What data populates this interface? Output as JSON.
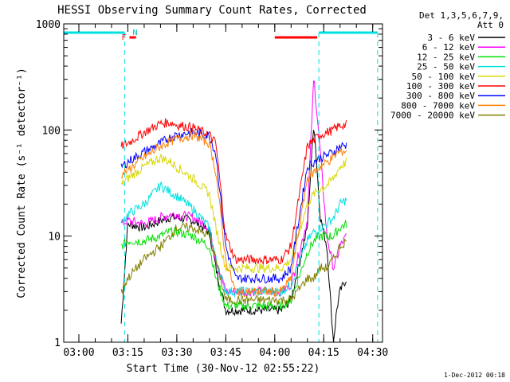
{
  "chart_data": {
    "type": "line",
    "title": "HESSI Observing Summary Count Rates, Corrected",
    "xlabel": "Start Time (30-Nov-12 02:55:22)",
    "ylabel": "Corrected Count Rate (s⁻¹ detector⁻¹)",
    "timestamp": "1-Dec-2012 00:18",
    "yscale": "log",
    "ylim": [
      1,
      1000
    ],
    "xlim": [
      "02:55:22",
      "04:33:00"
    ],
    "x_ticks": [
      "03:00",
      "03:15",
      "03:30",
      "03:45",
      "04:00",
      "04:15",
      "04:30"
    ],
    "y_ticks": [
      "1",
      "10",
      "100",
      "1000"
    ],
    "legend": {
      "header": [
        "Det 1,3,5,6,7,9,",
        "Att 0"
      ],
      "placement": "right"
    },
    "annotations": {
      "flare_marker": "F",
      "night_marker": "N",
      "day_intervals": [
        [
          "02:55:22",
          "03:14:00"
        ],
        [
          "04:13:30",
          "04:31:30"
        ]
      ],
      "flare_intervals": [
        [
          "03:15:30",
          "03:17:30"
        ],
        [
          "04:00:00",
          "04:13:00"
        ]
      ],
      "saa_dash_times": [
        "03:14:00",
        "04:13:30",
        "04:31:30"
      ]
    },
    "x_minutes": [
      13,
      15,
      20,
      25,
      28,
      30,
      35,
      40,
      42,
      45,
      48,
      50,
      52,
      55,
      58,
      60,
      62,
      65,
      70,
      72,
      74,
      76,
      78,
      79,
      80,
      82
    ],
    "series": [
      {
        "name": "3 - 6 keV",
        "color": "#000000",
        "values": [
          1.5,
          13,
          12,
          14,
          15,
          15,
          14,
          11,
          5,
          2,
          2,
          2,
          2,
          2,
          2,
          2,
          2,
          2.5,
          12,
          120,
          15,
          8,
          1,
          2,
          3,
          4
        ]
      },
      {
        "name": "6 - 12 keV",
        "color": "#ff00ff",
        "values": [
          13,
          14,
          13,
          15,
          16,
          16,
          15,
          12,
          6,
          3,
          3,
          3,
          3,
          3,
          3,
          3,
          3,
          3.5,
          14,
          320,
          60,
          10,
          5,
          6,
          8,
          10
        ]
      },
      {
        "name": "12 - 25 keV",
        "color": "#00e000",
        "values": [
          8,
          9,
          9,
          10,
          11,
          11,
          10,
          8,
          4,
          2.2,
          2.2,
          2.2,
          2.2,
          2.2,
          2.2,
          2.2,
          2.2,
          2.5,
          7,
          9,
          10,
          10,
          10,
          11,
          12,
          13
        ]
      },
      {
        "name": "25 - 50 keV",
        "color": "#00e0e0",
        "values": [
          13,
          16,
          20,
          30,
          26,
          24,
          18,
          12,
          6,
          3,
          3,
          3,
          3,
          3,
          3,
          3,
          3,
          3.5,
          9,
          11,
          12,
          13,
          15,
          17,
          20,
          22
        ]
      },
      {
        "name": "50 - 100 keV",
        "color": "#d8d800",
        "values": [
          30,
          35,
          45,
          55,
          50,
          45,
          35,
          25,
          12,
          5,
          5,
          5,
          5,
          5,
          5,
          5,
          5,
          6,
          20,
          25,
          28,
          30,
          35,
          40,
          45,
          50
        ]
      },
      {
        "name": "100 - 300 keV",
        "color": "#ff0000",
        "values": [
          70,
          75,
          95,
          115,
          118,
          112,
          105,
          90,
          75,
          10,
          6,
          6,
          6,
          6,
          6,
          6,
          6,
          8,
          70,
          80,
          90,
          95,
          100,
          105,
          110,
          112
        ]
      },
      {
        "name": "300 - 800 keV",
        "color": "#0000ff",
        "values": [
          45,
          50,
          62,
          75,
          85,
          90,
          95,
          88,
          60,
          8,
          4,
          4,
          4,
          4,
          4,
          4,
          4,
          5,
          45,
          50,
          55,
          58,
          62,
          66,
          70,
          72
        ]
      },
      {
        "name": "800 - 7000 keV",
        "color": "#ff8000",
        "values": [
          38,
          42,
          55,
          70,
          78,
          82,
          90,
          75,
          40,
          6,
          3,
          3,
          3,
          3,
          3,
          3,
          3,
          4,
          35,
          40,
          45,
          50,
          55,
          60,
          62,
          64
        ]
      },
      {
        "name": "7000 - 20000 keV",
        "color": "#808000",
        "values": [
          3,
          4,
          6,
          8,
          10,
          12,
          12,
          10,
          6,
          2.5,
          2.5,
          2.5,
          2.5,
          2.5,
          2.5,
          2.5,
          2.5,
          2.5,
          4,
          4,
          5,
          5,
          6,
          7,
          8,
          9
        ]
      }
    ]
  }
}
